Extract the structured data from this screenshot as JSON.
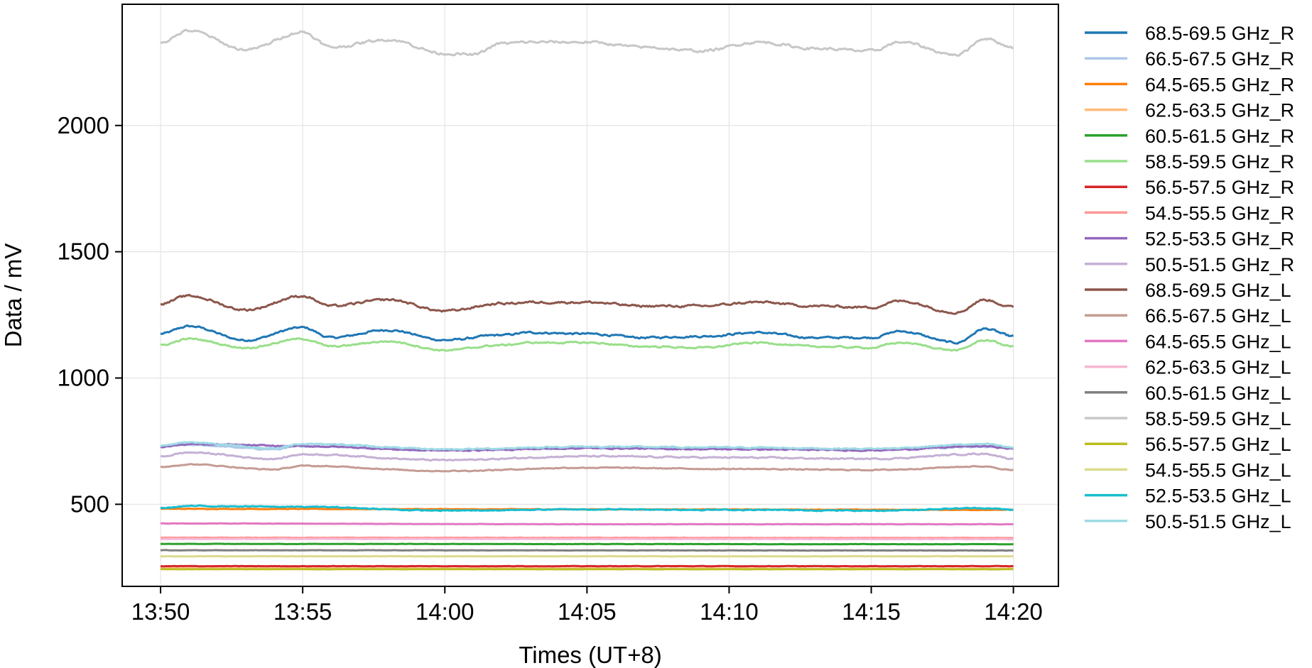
{
  "chart_data": {
    "type": "line",
    "title": "",
    "xlabel": "Times (UT+8)",
    "ylabel": "Data / mV",
    "x_unit": "time",
    "x_start": "13:50",
    "x_end": "14:20",
    "xlim": [
      "13:48:39",
      "14:21:35"
    ],
    "ylim": [
      175,
      2480
    ],
    "x_ticks": [
      "13:50",
      "13:55",
      "14:00",
      "14:05",
      "14:10",
      "14:15",
      "14:20"
    ],
    "y_ticks": [
      500,
      1000,
      1500,
      2000
    ],
    "grid": true,
    "legend": "outside-right",
    "series": [
      {
        "name": "68.5-69.5 GHz_R",
        "color": "#1f77b4",
        "base": 1170,
        "amp": 30,
        "noise": 6,
        "points": [
          [
            "13:50",
            1175
          ],
          [
            "13:51",
            1205
          ],
          [
            "13:53",
            1150
          ],
          [
            "13:55",
            1200
          ],
          [
            "13:56",
            1160
          ],
          [
            "13:58",
            1190
          ],
          [
            "14:00",
            1150
          ],
          [
            "14:02",
            1170
          ],
          [
            "14:03",
            1180
          ],
          [
            "14:05",
            1175
          ],
          [
            "14:07",
            1160
          ],
          [
            "14:09",
            1165
          ],
          [
            "14:11",
            1180
          ],
          [
            "14:13",
            1160
          ],
          [
            "14:15",
            1160
          ],
          [
            "14:16",
            1185
          ],
          [
            "14:18",
            1140
          ],
          [
            "14:19",
            1195
          ],
          [
            "14:20",
            1165
          ]
        ]
      },
      {
        "name": "66.5-67.5 GHz_R",
        "color": "#aec7e8",
        "base": 720,
        "amp": 12,
        "noise": 4,
        "points": [
          [
            "13:50",
            728
          ],
          [
            "13:51",
            735
          ],
          [
            "13:54",
            718
          ],
          [
            "13:55",
            730
          ],
          [
            "14:00",
            715
          ],
          [
            "14:05",
            722
          ],
          [
            "14:10",
            720
          ],
          [
            "14:15",
            716
          ],
          [
            "14:19",
            728
          ],
          [
            "14:20",
            722
          ]
        ]
      },
      {
        "name": "64.5-65.5 GHz_R",
        "color": "#ff7f0e",
        "base": 480,
        "amp": 3,
        "noise": 1.5,
        "points": [
          [
            "13:50",
            482
          ],
          [
            "14:05",
            480
          ],
          [
            "14:20",
            478
          ]
        ]
      },
      {
        "name": "62.5-63.5 GHz_R",
        "color": "#ffbb78",
        "base": 246,
        "amp": 1,
        "noise": 1,
        "points": [
          [
            "13:50",
            246
          ],
          [
            "14:20",
            245
          ]
        ]
      },
      {
        "name": "60.5-61.5 GHz_R",
        "color": "#2ca02c",
        "base": 343,
        "amp": 1,
        "noise": 1,
        "points": [
          [
            "13:50",
            343
          ],
          [
            "14:20",
            342
          ]
        ]
      },
      {
        "name": "58.5-59.5 GHz_R",
        "color": "#98df8a",
        "base": 1130,
        "amp": 25,
        "noise": 5,
        "points": [
          [
            "13:50",
            1130
          ],
          [
            "13:51",
            1155
          ],
          [
            "13:53",
            1120
          ],
          [
            "13:55",
            1155
          ],
          [
            "13:56",
            1125
          ],
          [
            "13:58",
            1145
          ],
          [
            "14:00",
            1110
          ],
          [
            "14:02",
            1130
          ],
          [
            "14:03",
            1140
          ],
          [
            "14:05",
            1140
          ],
          [
            "14:07",
            1125
          ],
          [
            "14:09",
            1120
          ],
          [
            "14:11",
            1140
          ],
          [
            "14:13",
            1125
          ],
          [
            "14:15",
            1120
          ],
          [
            "14:16",
            1140
          ],
          [
            "14:18",
            1110
          ],
          [
            "14:19",
            1150
          ],
          [
            "14:20",
            1125
          ]
        ]
      },
      {
        "name": "56.5-57.5 GHz_R",
        "color": "#d62728",
        "base": 255,
        "amp": 1,
        "noise": 1,
        "points": [
          [
            "13:50",
            255
          ],
          [
            "14:20",
            255
          ]
        ]
      },
      {
        "name": "54.5-55.5 GHz_R",
        "color": "#ff9896",
        "base": 368,
        "amp": 1,
        "noise": 1,
        "points": [
          [
            "13:50",
            368
          ],
          [
            "14:20",
            367
          ]
        ]
      },
      {
        "name": "52.5-53.5 GHz_R",
        "color": "#9467bd",
        "base": 720,
        "amp": 10,
        "noise": 4,
        "points": [
          [
            "13:50",
            728
          ],
          [
            "13:51",
            738
          ],
          [
            "13:55",
            730
          ],
          [
            "14:00",
            713
          ],
          [
            "14:05",
            722
          ],
          [
            "14:10",
            718
          ],
          [
            "14:15",
            714
          ],
          [
            "14:19",
            730
          ],
          [
            "14:20",
            720
          ]
        ]
      },
      {
        "name": "50.5-51.5 GHz_R",
        "color": "#c5b0d5",
        "base": 690,
        "amp": 12,
        "noise": 4,
        "points": [
          [
            "13:50",
            690
          ],
          [
            "13:51",
            705
          ],
          [
            "13:54",
            680
          ],
          [
            "13:55",
            698
          ],
          [
            "14:00",
            675
          ],
          [
            "14:05",
            690
          ],
          [
            "14:10",
            685
          ],
          [
            "14:15",
            680
          ],
          [
            "14:19",
            700
          ],
          [
            "14:20",
            680
          ]
        ]
      },
      {
        "name": "68.5-69.5 GHz_L",
        "color": "#8c564b",
        "base": 1290,
        "amp": 30,
        "noise": 7,
        "points": [
          [
            "13:50",
            1295
          ],
          [
            "13:51",
            1325
          ],
          [
            "13:53",
            1270
          ],
          [
            "13:55",
            1325
          ],
          [
            "13:56",
            1285
          ],
          [
            "13:58",
            1310
          ],
          [
            "14:00",
            1265
          ],
          [
            "14:02",
            1295
          ],
          [
            "14:03",
            1300
          ],
          [
            "14:05",
            1300
          ],
          [
            "14:07",
            1285
          ],
          [
            "14:09",
            1285
          ],
          [
            "14:11",
            1300
          ],
          [
            "14:13",
            1285
          ],
          [
            "14:15",
            1280
          ],
          [
            "14:16",
            1305
          ],
          [
            "14:18",
            1260
          ],
          [
            "14:19",
            1310
          ],
          [
            "14:20",
            1280
          ]
        ]
      },
      {
        "name": "66.5-67.5 GHz_L",
        "color": "#c49c94",
        "base": 645,
        "amp": 10,
        "noise": 3,
        "points": [
          [
            "13:50",
            648
          ],
          [
            "13:51",
            658
          ],
          [
            "13:54",
            638
          ],
          [
            "13:55",
            652
          ],
          [
            "14:00",
            632
          ],
          [
            "14:05",
            645
          ],
          [
            "14:10",
            640
          ],
          [
            "14:15",
            636
          ],
          [
            "14:19",
            650
          ],
          [
            "14:20",
            635
          ]
        ]
      },
      {
        "name": "64.5-65.5 GHz_L",
        "color": "#e377c2",
        "base": 422,
        "amp": 2,
        "noise": 1,
        "points": [
          [
            "13:50",
            424
          ],
          [
            "14:05",
            421
          ],
          [
            "14:20",
            421
          ]
        ]
      },
      {
        "name": "62.5-63.5 GHz_L",
        "color": "#f7b6d2",
        "base": 363,
        "amp": 1,
        "noise": 1,
        "points": [
          [
            "13:50",
            363
          ],
          [
            "14:20",
            362
          ]
        ]
      },
      {
        "name": "60.5-61.5 GHz_L",
        "color": "#7f7f7f",
        "base": 318,
        "amp": 1,
        "noise": 1,
        "points": [
          [
            "13:50",
            318
          ],
          [
            "14:20",
            317
          ]
        ]
      },
      {
        "name": "58.5-59.5 GHz_L",
        "color": "#c7c7c7",
        "base": 2320,
        "amp": 40,
        "noise": 8,
        "points": [
          [
            "13:50",
            2330
          ],
          [
            "13:51",
            2375
          ],
          [
            "13:53",
            2300
          ],
          [
            "13:55",
            2370
          ],
          [
            "13:56",
            2310
          ],
          [
            "13:58",
            2340
          ],
          [
            "14:00",
            2285
          ],
          [
            "14:01",
            2280
          ],
          [
            "14:02",
            2325
          ],
          [
            "14:03",
            2330
          ],
          [
            "14:05",
            2330
          ],
          [
            "14:07",
            2310
          ],
          [
            "14:09",
            2295
          ],
          [
            "14:11",
            2330
          ],
          [
            "14:13",
            2305
          ],
          [
            "14:15",
            2295
          ],
          [
            "14:16",
            2330
          ],
          [
            "14:18",
            2280
          ],
          [
            "14:19",
            2345
          ],
          [
            "14:20",
            2310
          ]
        ]
      },
      {
        "name": "56.5-57.5 GHz_L",
        "color": "#bcbd22",
        "base": 243,
        "amp": 1,
        "noise": 0.8,
        "points": [
          [
            "13:50",
            243
          ],
          [
            "14:20",
            243
          ]
        ]
      },
      {
        "name": "54.5-55.5 GHz_L",
        "color": "#dbdb8d",
        "base": 294,
        "amp": 1,
        "noise": 1,
        "points": [
          [
            "13:50",
            294
          ],
          [
            "14:20",
            294
          ]
        ]
      },
      {
        "name": "52.5-53.5 GHz_L",
        "color": "#17becf",
        "base": 482,
        "amp": 6,
        "noise": 3,
        "points": [
          [
            "13:50",
            485
          ],
          [
            "13:51",
            493
          ],
          [
            "13:55",
            490
          ],
          [
            "14:00",
            475
          ],
          [
            "14:05",
            480
          ],
          [
            "14:10",
            478
          ],
          [
            "14:15",
            475
          ],
          [
            "14:19",
            485
          ],
          [
            "14:20",
            478
          ]
        ]
      },
      {
        "name": "50.5-51.5 GHz_L",
        "color": "#9edae5",
        "base": 730,
        "amp": 12,
        "noise": 4,
        "points": [
          [
            "13:50",
            732
          ],
          [
            "13:51",
            745
          ],
          [
            "13:54",
            722
          ],
          [
            "13:55",
            740
          ],
          [
            "14:00",
            718
          ],
          [
            "14:05",
            728
          ],
          [
            "14:10",
            725
          ],
          [
            "14:15",
            720
          ],
          [
            "14:19",
            738
          ],
          [
            "14:20",
            725
          ]
        ]
      }
    ]
  }
}
